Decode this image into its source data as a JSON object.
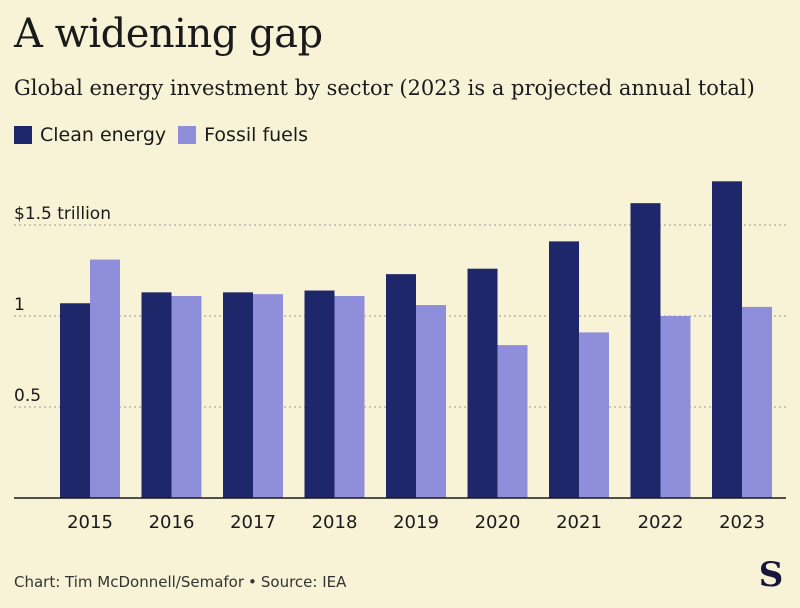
{
  "title": "A widening gap",
  "subtitle": "Global energy investment by sector (2023 is a projected annual total)",
  "footer": {
    "credit": "Chart: Tim McDonnell/Semafor",
    "source": "Source: IEA"
  },
  "colors": {
    "clean": "#1f276b",
    "fossil": "#8f8edb",
    "grid": "#9a9a9a",
    "axis": "#1a1a1a"
  },
  "chart_data": {
    "type": "bar",
    "categories": [
      "2015",
      "2016",
      "2017",
      "2018",
      "2019",
      "2020",
      "2021",
      "2022",
      "2023"
    ],
    "series": [
      {
        "name": "Clean energy",
        "values": [
          1.07,
          1.13,
          1.13,
          1.14,
          1.23,
          1.26,
          1.41,
          1.62,
          1.74
        ]
      },
      {
        "name": "Fossil fuels",
        "values": [
          1.31,
          1.11,
          1.12,
          1.11,
          1.06,
          0.84,
          0.91,
          1.0,
          1.05
        ]
      }
    ],
    "yticks": [
      {
        "value": 0.5,
        "label": "0.5"
      },
      {
        "value": 1,
        "label": "1"
      },
      {
        "value": 1.5,
        "label": "$1.5 trillion"
      }
    ],
    "ylim": [
      0,
      1.75
    ],
    "grid": true,
    "legend": "top-left"
  }
}
